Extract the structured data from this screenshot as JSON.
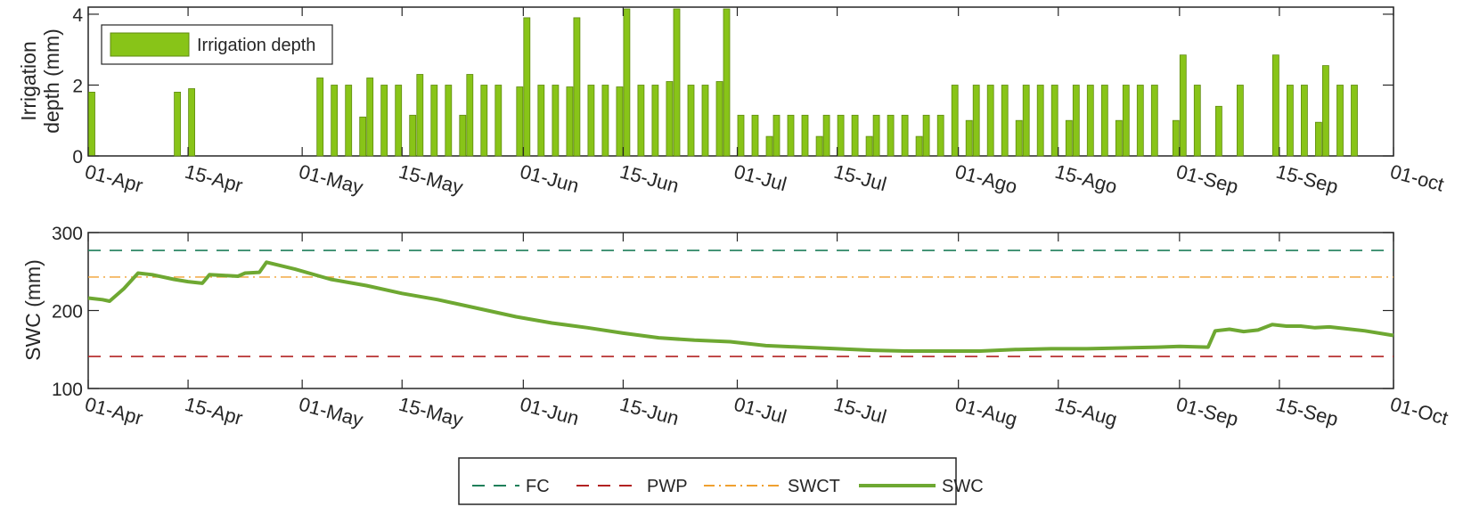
{
  "chart_data": [
    {
      "type": "bar",
      "ylabel_lines": [
        "Irrigation",
        "depth (mm)"
      ],
      "ylim": [
        0,
        4.2
      ],
      "yticks": [
        "0",
        "2",
        "4"
      ],
      "xlim_days": [
        0,
        183
      ],
      "xtick_labels": [
        "01-Apr",
        "15-Apr",
        "01-May",
        "15-May",
        "01-Jun",
        "15-Jun",
        "01-Jul",
        "15-Jul",
        "01-Ago",
        "15-Ago",
        "01-Sep",
        "15-Sep",
        "01-oct"
      ],
      "legend": {
        "entries": [
          "Irrigation depth"
        ],
        "placement": "top-left"
      },
      "bar_color": "#88c418",
      "series": [
        {
          "name": "Irrigation depth",
          "points": [
            {
              "x": "01-Apr",
              "y": 1.8
            },
            {
              "x": "13-Apr",
              "y": 1.8
            },
            {
              "x": "15-Apr",
              "y": 1.9
            },
            {
              "x": "03-May",
              "y": 2.2
            },
            {
              "x": "05-May",
              "y": 2.0
            },
            {
              "x": "07-May",
              "y": 2.0
            },
            {
              "x": "09-May",
              "y": 1.1
            },
            {
              "x": "10-May",
              "y": 2.2
            },
            {
              "x": "12-May",
              "y": 2.0
            },
            {
              "x": "14-May",
              "y": 2.0
            },
            {
              "x": "16-May",
              "y": 1.15
            },
            {
              "x": "17-May",
              "y": 2.3
            },
            {
              "x": "19-May",
              "y": 2.0
            },
            {
              "x": "21-May",
              "y": 2.0
            },
            {
              "x": "23-May",
              "y": 1.15
            },
            {
              "x": "24-May",
              "y": 2.3
            },
            {
              "x": "26-May",
              "y": 2.0
            },
            {
              "x": "28-May",
              "y": 2.0
            },
            {
              "x": "31-May",
              "y": 1.95
            },
            {
              "x": "01-Jun",
              "y": 3.9
            },
            {
              "x": "03-Jun",
              "y": 2.0
            },
            {
              "x": "05-Jun",
              "y": 2.0
            },
            {
              "x": "07-Jun",
              "y": 1.95
            },
            {
              "x": "08-Jun",
              "y": 3.9
            },
            {
              "x": "10-Jun",
              "y": 2.0
            },
            {
              "x": "12-Jun",
              "y": 2.0
            },
            {
              "x": "14-Jun",
              "y": 1.95
            },
            {
              "x": "15-Jun",
              "y": 4.15
            },
            {
              "x": "17-Jun",
              "y": 2.0
            },
            {
              "x": "19-Jun",
              "y": 2.0
            },
            {
              "x": "21-Jun",
              "y": 2.1
            },
            {
              "x": "22-Jun",
              "y": 4.15
            },
            {
              "x": "24-Jun",
              "y": 2.0
            },
            {
              "x": "26-Jun",
              "y": 2.0
            },
            {
              "x": "28-Jun",
              "y": 2.1
            },
            {
              "x": "29-Jun",
              "y": 4.15
            },
            {
              "x": "01-Jul",
              "y": 1.15
            },
            {
              "x": "03-Jul",
              "y": 1.15
            },
            {
              "x": "05-Jul",
              "y": 0.55
            },
            {
              "x": "06-Jul",
              "y": 1.15
            },
            {
              "x": "08-Jul",
              "y": 1.15
            },
            {
              "x": "10-Jul",
              "y": 1.15
            },
            {
              "x": "12-Jul",
              "y": 0.55
            },
            {
              "x": "13-Jul",
              "y": 1.15
            },
            {
              "x": "15-Jul",
              "y": 1.15
            },
            {
              "x": "17-Jul",
              "y": 1.15
            },
            {
              "x": "19-Jul",
              "y": 0.55
            },
            {
              "x": "20-Jul",
              "y": 1.15
            },
            {
              "x": "22-Jul",
              "y": 1.15
            },
            {
              "x": "24-Jul",
              "y": 1.15
            },
            {
              "x": "26-Jul",
              "y": 0.55
            },
            {
              "x": "27-Jul",
              "y": 1.15
            },
            {
              "x": "29-Jul",
              "y": 1.15
            },
            {
              "x": "31-Jul",
              "y": 2.0
            },
            {
              "x": "02-Ago",
              "y": 1.0
            },
            {
              "x": "03-Ago",
              "y": 2.0
            },
            {
              "x": "05-Ago",
              "y": 2.0
            },
            {
              "x": "07-Ago",
              "y": 2.0
            },
            {
              "x": "09-Ago",
              "y": 1.0
            },
            {
              "x": "10-Ago",
              "y": 2.0
            },
            {
              "x": "12-Ago",
              "y": 2.0
            },
            {
              "x": "14-Ago",
              "y": 2.0
            },
            {
              "x": "16-Ago",
              "y": 1.0
            },
            {
              "x": "17-Ago",
              "y": 2.0
            },
            {
              "x": "19-Ago",
              "y": 2.0
            },
            {
              "x": "21-Ago",
              "y": 2.0
            },
            {
              "x": "23-Ago",
              "y": 1.0
            },
            {
              "x": "24-Ago",
              "y": 2.0
            },
            {
              "x": "26-Ago",
              "y": 2.0
            },
            {
              "x": "28-Ago",
              "y": 2.0
            },
            {
              "x": "31-Ago",
              "y": 1.0
            },
            {
              "x": "01-Sep",
              "y": 2.85
            },
            {
              "x": "03-Sep",
              "y": 2.0
            },
            {
              "x": "06-Sep",
              "y": 1.4
            },
            {
              "x": "09-Sep",
              "y": 2.0
            },
            {
              "x": "14-Sep",
              "y": 2.85
            },
            {
              "x": "16-Sep",
              "y": 2.0
            },
            {
              "x": "18-Sep",
              "y": 2.0
            },
            {
              "x": "20-Sep",
              "y": 0.95
            },
            {
              "x": "21-Sep",
              "y": 2.55
            },
            {
              "x": "23-Sep",
              "y": 2.0
            },
            {
              "x": "25-Sep",
              "y": 2.0
            }
          ]
        }
      ]
    },
    {
      "type": "line",
      "ylabel": "SWC (mm)",
      "ylim": [
        100,
        300
      ],
      "yticks": [
        "100",
        "200",
        "300"
      ],
      "xlim_days": [
        0,
        183
      ],
      "xtick_labels": [
        "01-Apr",
        "15-Apr",
        "01-May",
        "15-May",
        "01-Jun",
        "15-Jun",
        "01-Jul",
        "15-Jul",
        "01-Aug",
        "15-Aug",
        "01-Sep",
        "15-Sep",
        "01-Oct"
      ],
      "legend": {
        "entries": [
          "FC",
          "PWP",
          "SWCT",
          "SWC"
        ],
        "placement": "bottom-center, outside"
      },
      "series": [
        {
          "name": "FC",
          "style": "dashed",
          "color": "#1f7f5a",
          "points": [
            {
              "x": "01-Apr",
              "y": 277
            },
            {
              "x": "01-Oct",
              "y": 277
            }
          ]
        },
        {
          "name": "PWP",
          "style": "dashed",
          "color": "#b22222",
          "points": [
            {
              "x": "01-Apr",
              "y": 141
            },
            {
              "x": "01-Oct",
              "y": 141
            }
          ]
        },
        {
          "name": "SWCT",
          "style": "dash-dot",
          "color": "#f0a030",
          "points": [
            {
              "x": "01-Apr",
              "y": 243
            },
            {
              "x": "01-Oct",
              "y": 243
            }
          ]
        },
        {
          "name": "SWC",
          "style": "solid",
          "color": "#6ea832",
          "points": [
            {
              "x": "01-Apr",
              "y": 216
            },
            {
              "x": "03-Apr",
              "y": 214
            },
            {
              "x": "04-Apr",
              "y": 212
            },
            {
              "x": "06-Apr",
              "y": 228
            },
            {
              "x": "08-Apr",
              "y": 248
            },
            {
              "x": "10-Apr",
              "y": 246
            },
            {
              "x": "13-Apr",
              "y": 240
            },
            {
              "x": "15-Apr",
              "y": 237
            },
            {
              "x": "17-Apr",
              "y": 235
            },
            {
              "x": "18-Apr",
              "y": 246
            },
            {
              "x": "20-Apr",
              "y": 245
            },
            {
              "x": "22-Apr",
              "y": 244
            },
            {
              "x": "23-Apr",
              "y": 248
            },
            {
              "x": "25-Apr",
              "y": 249
            },
            {
              "x": "26-Apr",
              "y": 262
            },
            {
              "x": "30-Apr",
              "y": 253
            },
            {
              "x": "05-May",
              "y": 240
            },
            {
              "x": "10-May",
              "y": 232
            },
            {
              "x": "15-May",
              "y": 222
            },
            {
              "x": "20-May",
              "y": 214
            },
            {
              "x": "25-May",
              "y": 204
            },
            {
              "x": "31-May",
              "y": 192
            },
            {
              "x": "05-Jun",
              "y": 184
            },
            {
              "x": "10-Jun",
              "y": 178
            },
            {
              "x": "15-Jun",
              "y": 171
            },
            {
              "x": "20-Jun",
              "y": 165
            },
            {
              "x": "25-Jun",
              "y": 162
            },
            {
              "x": "30-Jun",
              "y": 160
            },
            {
              "x": "05-Jul",
              "y": 155
            },
            {
              "x": "10-Jul",
              "y": 153
            },
            {
              "x": "15-Jul",
              "y": 151
            },
            {
              "x": "20-Jul",
              "y": 149
            },
            {
              "x": "25-Jul",
              "y": 148
            },
            {
              "x": "30-Jul",
              "y": 148
            },
            {
              "x": "04-Aug",
              "y": 148
            },
            {
              "x": "09-Aug",
              "y": 150
            },
            {
              "x": "14-Aug",
              "y": 151
            },
            {
              "x": "19-Aug",
              "y": 151
            },
            {
              "x": "24-Aug",
              "y": 152
            },
            {
              "x": "29-Aug",
              "y": 153
            },
            {
              "x": "01-Sep",
              "y": 154
            },
            {
              "x": "05-Sep",
              "y": 153
            },
            {
              "x": "06-Sep",
              "y": 174
            },
            {
              "x": "08-Sep",
              "y": 176
            },
            {
              "x": "10-Sep",
              "y": 173
            },
            {
              "x": "12-Sep",
              "y": 175
            },
            {
              "x": "14-Sep",
              "y": 182
            },
            {
              "x": "16-Sep",
              "y": 180
            },
            {
              "x": "18-Sep",
              "y": 180
            },
            {
              "x": "20-Sep",
              "y": 178
            },
            {
              "x": "22-Sep",
              "y": 179
            },
            {
              "x": "24-Sep",
              "y": 177
            },
            {
              "x": "27-Sep",
              "y": 174
            },
            {
              "x": "01-Oct",
              "y": 168
            }
          ]
        }
      ]
    }
  ]
}
